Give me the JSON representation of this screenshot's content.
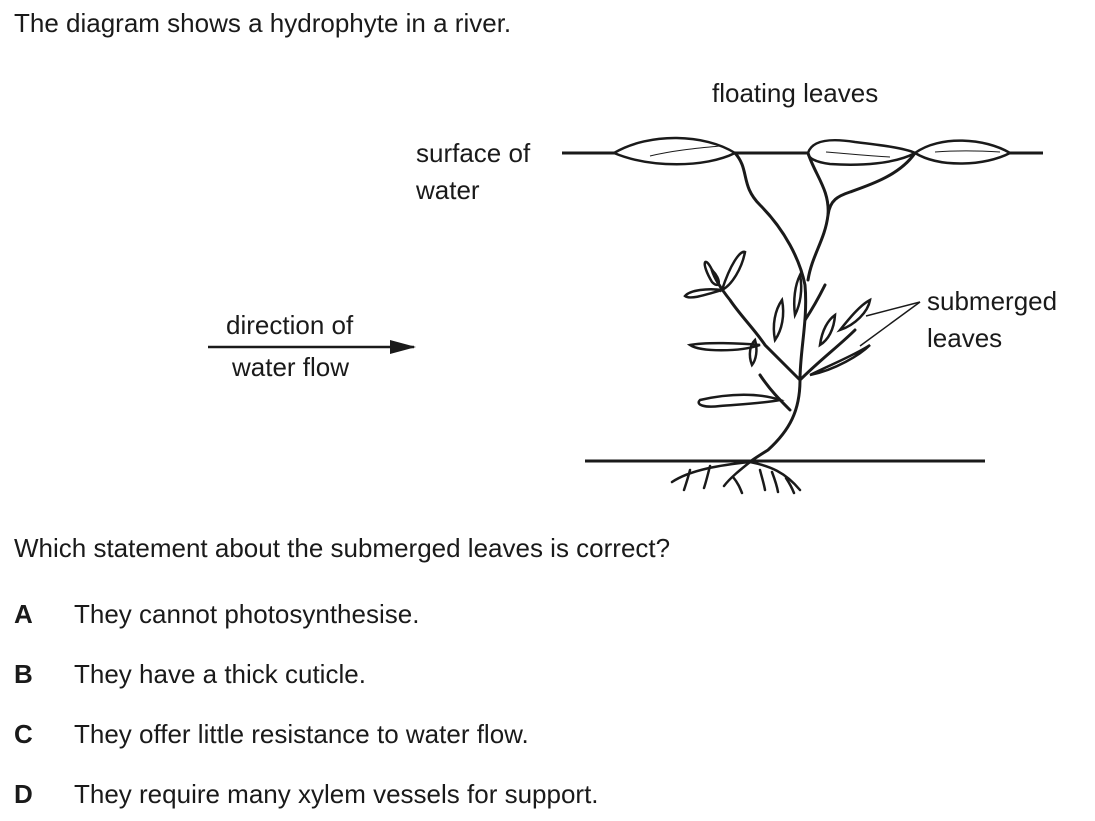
{
  "intro_text": "The diagram shows a hydrophyte in a river.",
  "diagram": {
    "labels": {
      "floating_leaves": "floating leaves",
      "surface_line1": "surface of",
      "surface_line2": "water",
      "flow_line1": "direction of",
      "flow_line2": "water flow",
      "submerged_line1": "submerged",
      "submerged_line2": "leaves"
    }
  },
  "question": "Which statement about the submerged leaves is correct?",
  "options": [
    {
      "letter": "A",
      "text": "They cannot photosynthesise."
    },
    {
      "letter": "B",
      "text": "They have a thick cuticle."
    },
    {
      "letter": "C",
      "text": "They offer little resistance to water flow."
    },
    {
      "letter": "D",
      "text": "They require many xylem vessels for support."
    }
  ]
}
